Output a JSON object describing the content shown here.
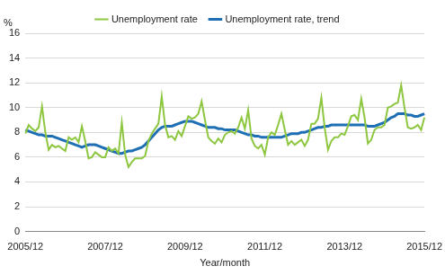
{
  "chart_data": {
    "type": "line",
    "y_label": "%",
    "x_label": "Year/month",
    "categories": [
      "2005/12",
      null,
      null,
      null,
      null,
      null,
      null,
      null,
      null,
      null,
      null,
      null,
      null,
      null,
      null,
      null,
      null,
      null,
      null,
      null,
      null,
      null,
      null,
      null,
      "2007/12",
      null,
      null,
      null,
      null,
      null,
      null,
      null,
      null,
      null,
      null,
      null,
      null,
      null,
      null,
      null,
      null,
      null,
      null,
      null,
      null,
      null,
      null,
      null,
      "2009/12",
      null,
      null,
      null,
      null,
      null,
      null,
      null,
      null,
      null,
      null,
      null,
      null,
      null,
      null,
      null,
      null,
      null,
      null,
      null,
      null,
      null,
      null,
      null,
      "2011/12",
      null,
      null,
      null,
      null,
      null,
      null,
      null,
      null,
      null,
      null,
      null,
      null,
      null,
      null,
      null,
      null,
      null,
      null,
      null,
      null,
      null,
      null,
      null,
      "2013/12",
      null,
      null,
      null,
      null,
      null,
      null,
      null,
      null,
      null,
      null,
      null,
      null,
      null,
      null,
      null,
      null,
      null,
      null,
      null,
      null,
      null,
      null,
      null,
      "2015/12"
    ],
    "series": [
      {
        "name": "Unemployment rate",
        "color": "#8dc63f",
        "values": [
          7.9,
          8.6,
          8.3,
          8.1,
          8.4,
          10.1,
          8.0,
          6.6,
          7.0,
          6.8,
          6.9,
          6.7,
          6.5,
          7.6,
          7.4,
          7.6,
          7.2,
          8.5,
          7.3,
          5.9,
          6.0,
          6.4,
          6.2,
          6.0,
          6.0,
          6.8,
          6.5,
          6.7,
          6.3,
          8.8,
          6.2,
          5.2,
          5.6,
          5.9,
          5.9,
          5.9,
          6.1,
          7.3,
          7.9,
          8.3,
          8.7,
          10.9,
          8.6,
          7.6,
          7.7,
          7.4,
          8.1,
          7.7,
          8.5,
          9.3,
          9.1,
          9.2,
          9.5,
          10.5,
          9.0,
          7.6,
          7.3,
          7.1,
          7.5,
          7.2,
          7.8,
          8.0,
          8.1,
          7.9,
          8.4,
          9.2,
          8.3,
          9.8,
          7.5,
          6.9,
          6.7,
          7.0,
          6.2,
          7.6,
          8.0,
          7.8,
          8.6,
          9.5,
          8.2,
          7.0,
          7.3,
          7.0,
          7.2,
          7.4,
          6.9,
          7.4,
          8.7,
          8.7,
          9.1,
          10.8,
          8.4,
          6.6,
          7.3,
          7.6,
          7.6,
          7.9,
          7.8,
          8.5,
          9.3,
          9.4,
          9.0,
          10.7,
          9.2,
          7.1,
          7.4,
          8.2,
          8.4,
          8.4,
          8.6,
          10.0,
          10.1,
          10.3,
          10.4,
          11.8,
          10.0,
          8.4,
          8.3,
          8.4,
          8.6,
          8.2,
          9.2
        ]
      },
      {
        "name": "Unemployment rate, trend",
        "color": "#1f6fb5",
        "values": [
          8.2,
          8.1,
          8.0,
          7.9,
          7.8,
          7.8,
          7.7,
          7.7,
          7.7,
          7.6,
          7.5,
          7.4,
          7.3,
          7.2,
          7.1,
          7.0,
          6.9,
          6.8,
          6.9,
          7.0,
          7.0,
          7.0,
          6.9,
          6.8,
          6.7,
          6.6,
          6.5,
          6.4,
          6.3,
          6.3,
          6.4,
          6.5,
          6.5,
          6.6,
          6.7,
          6.8,
          7.0,
          7.3,
          7.6,
          7.9,
          8.2,
          8.4,
          8.5,
          8.5,
          8.5,
          8.6,
          8.7,
          8.8,
          8.9,
          8.9,
          8.9,
          8.8,
          8.7,
          8.6,
          8.5,
          8.4,
          8.4,
          8.4,
          8.3,
          8.3,
          8.2,
          8.2,
          8.2,
          8.2,
          8.1,
          8.0,
          7.9,
          7.8,
          7.8,
          7.7,
          7.7,
          7.6,
          7.6,
          7.6,
          7.6,
          7.6,
          7.6,
          7.6,
          7.7,
          7.8,
          7.9,
          7.9,
          7.9,
          8.0,
          8.0,
          8.1,
          8.2,
          8.3,
          8.4,
          8.4,
          8.5,
          8.5,
          8.6,
          8.6,
          8.6,
          8.6,
          8.6,
          8.6,
          8.6,
          8.6,
          8.6,
          8.6,
          8.6,
          8.5,
          8.5,
          8.5,
          8.6,
          8.7,
          8.8,
          9.0,
          9.2,
          9.3,
          9.5,
          9.5,
          9.5,
          9.4,
          9.4,
          9.3,
          9.3,
          9.4,
          9.5
        ]
      }
    ],
    "ylim": [
      0,
      16
    ],
    "yticks": [
      0,
      2,
      4,
      6,
      8,
      10,
      12,
      14,
      16
    ],
    "grid": true,
    "legend": "top"
  }
}
